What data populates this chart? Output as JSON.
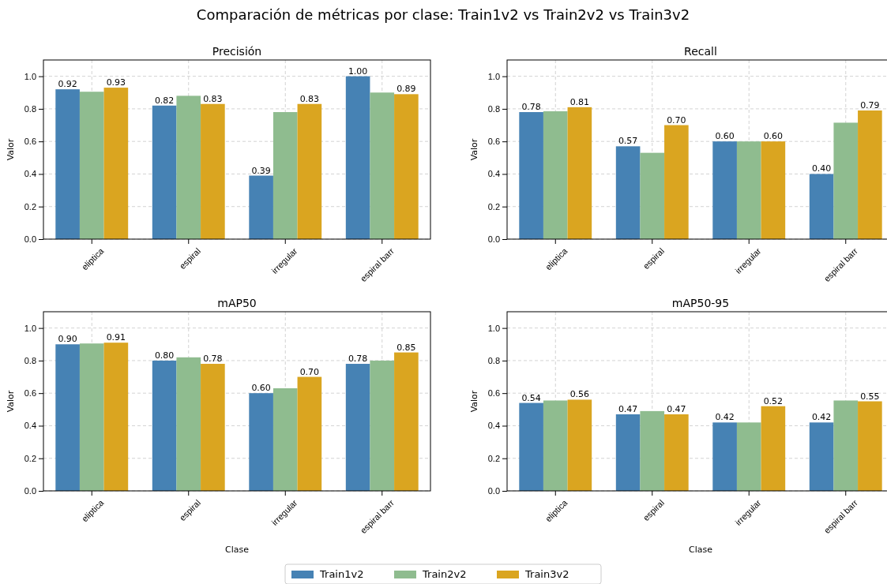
{
  "chart_data": [
    {
      "type": "bar",
      "title": "Precisión",
      "ylabel": "Valor",
      "annotations": [
        "Comparación de métricas por clase: Train1v2 vs Train2v2 vs Train3v2"
      ],
      "categories": [
        "eliptica",
        "espiral",
        "irregular",
        "espiral barr"
      ],
      "ylim": [
        0,
        1.1
      ],
      "yticks": [
        {
          "value": 0,
          "label": "0.0"
        },
        {
          "value": 0.2,
          "label": "0.2"
        },
        {
          "value": 0.4,
          "label": "0.4"
        },
        {
          "value": 0.6,
          "label": "0.6"
        },
        {
          "value": 0.8,
          "label": "0.8"
        },
        {
          "value": 1,
          "label": "1.0"
        }
      ],
      "grid": true,
      "legend": "bottom",
      "series": [
        {
          "name": "Train1v2",
          "color": "#4682b4",
          "values": [
            0.92,
            0.82,
            0.39,
            1.0
          ],
          "value_labels": [
            "0.92",
            "0.82",
            "0.39",
            "1.00"
          ]
        },
        {
          "name": "Train2v2",
          "color": "#8fbc8f",
          "values": [
            0.905,
            0.88,
            0.78,
            0.9
          ]
        },
        {
          "name": "Train3v2",
          "color": "#daa520",
          "values": [
            0.93,
            0.83,
            0.83,
            0.89
          ],
          "value_labels": [
            "0.93",
            "0.83",
            "0.83",
            "0.89"
          ]
        }
      ]
    },
    {
      "type": "bar",
      "title": "Recall",
      "ylabel": "Valor",
      "categories": [
        "eliptica",
        "espiral",
        "irregular",
        "espiral barr"
      ],
      "ylim": [
        0,
        1.1
      ],
      "yticks": [
        {
          "value": 0,
          "label": "0.0"
        },
        {
          "value": 0.2,
          "label": "0.2"
        },
        {
          "value": 0.4,
          "label": "0.4"
        },
        {
          "value": 0.6,
          "label": "0.6"
        },
        {
          "value": 0.8,
          "label": "0.8"
        },
        {
          "value": 1,
          "label": "1.0"
        }
      ],
      "grid": true,
      "series": [
        {
          "color": "#4682b4",
          "values": [
            0.78,
            0.57,
            0.6,
            0.4
          ],
          "value_labels": [
            "0.78",
            "0.57",
            "0.60",
            "0.40"
          ]
        },
        {
          "color": "#8fbc8f",
          "values": [
            0.785,
            0.53,
            0.6,
            0.715
          ]
        },
        {
          "color": "#daa520",
          "values": [
            0.81,
            0.7,
            0.6,
            0.79
          ],
          "value_labels": [
            "0.81",
            "0.70",
            "0.60",
            "0.79"
          ]
        }
      ]
    },
    {
      "type": "bar",
      "title": "mAP50",
      "ylabel": "Valor",
      "xlabel": "Clase",
      "categories": [
        "eliptica",
        "espiral",
        "irregular",
        "espiral barr"
      ],
      "ylim": [
        0,
        1.1
      ],
      "yticks": [
        {
          "value": 0,
          "label": "0.0"
        },
        {
          "value": 0.2,
          "label": "0.2"
        },
        {
          "value": 0.4,
          "label": "0.4"
        },
        {
          "value": 0.6,
          "label": "0.6"
        },
        {
          "value": 0.8,
          "label": "0.8"
        },
        {
          "value": 1,
          "label": "1.0"
        }
      ],
      "grid": true,
      "series": [
        {
          "color": "#4682b4",
          "values": [
            0.9,
            0.8,
            0.6,
            0.78
          ],
          "value_labels": [
            "0.90",
            "0.80",
            "0.60",
            "0.78"
          ]
        },
        {
          "color": "#8fbc8f",
          "values": [
            0.905,
            0.82,
            0.63,
            0.8
          ]
        },
        {
          "color": "#daa520",
          "values": [
            0.91,
            0.78,
            0.7,
            0.85
          ],
          "value_labels": [
            "0.91",
            "0.78",
            "0.70",
            "0.85"
          ]
        }
      ]
    },
    {
      "type": "bar",
      "title": "mAP50-95",
      "ylabel": "Valor",
      "xlabel": "Clase",
      "categories": [
        "eliptica",
        "espiral",
        "irregular",
        "espiral barr"
      ],
      "ylim": [
        0,
        1.1
      ],
      "yticks": [
        {
          "value": 0,
          "label": "0.0"
        },
        {
          "value": 0.2,
          "label": "0.2"
        },
        {
          "value": 0.4,
          "label": "0.4"
        },
        {
          "value": 0.6,
          "label": "0.6"
        },
        {
          "value": 0.8,
          "label": "0.8"
        },
        {
          "value": 1,
          "label": "1.0"
        }
      ],
      "grid": true,
      "series": [
        {
          "color": "#4682b4",
          "values": [
            0.54,
            0.47,
            0.42,
            0.42
          ],
          "value_labels": [
            "0.54",
            "0.47",
            "0.42",
            "0.42"
          ]
        },
        {
          "color": "#8fbc8f",
          "values": [
            0.555,
            0.49,
            0.42,
            0.555
          ]
        },
        {
          "color": "#daa520",
          "values": [
            0.56,
            0.47,
            0.52,
            0.55
          ],
          "value_labels": [
            "0.56",
            "0.47",
            "0.52",
            "0.55"
          ]
        }
      ]
    }
  ]
}
